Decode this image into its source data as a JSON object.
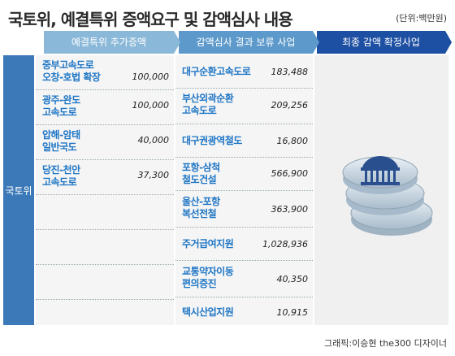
{
  "title": "국토위, 예결특위 증액요구 및 감액심사 내용",
  "unit": "(단위:백만원)",
  "headers": {
    "col1": "예결특위 추가증액",
    "col2": "감액심사 결과 보류 사업",
    "col3": "최종 감액 확정사업"
  },
  "side_label": "국토위",
  "col1_items": [
    {
      "name": "중부고속도로\n오창-호법 확장",
      "value": "100,000"
    },
    {
      "name": "광주-완도\n고속도로",
      "value": "100,000"
    },
    {
      "name": "압해-암태\n일반국도",
      "value": "40,000"
    },
    {
      "name": "당진-천안\n고속도로",
      "value": "37,300"
    }
  ],
  "col2_items": [
    {
      "name": "대구순환고속도로",
      "value": "183,488"
    },
    {
      "name": "부산외곽순환\n고속도로",
      "value": "209,256"
    },
    {
      "name": "대구권광역철도",
      "value": "16,800"
    },
    {
      "name": "포항-삼척\n철도건설",
      "value": "566,900"
    },
    {
      "name": "울산-포항\n복선전철",
      "value": "363,900"
    },
    {
      "name": "주거급여지원",
      "value": "1,028,936"
    },
    {
      "name": "교통약자이동\n편의증진",
      "value": "40,350"
    },
    {
      "name": "택시산업지원",
      "value": "10,915"
    }
  ],
  "credit": "그래픽:이승현 the300 디자이너",
  "colors": {
    "header1": "#8ab8d8",
    "header2": "#5d9acb",
    "header3": "#1d4fa3",
    "side": "#3c79b8",
    "item_text": "#1f76c5"
  }
}
